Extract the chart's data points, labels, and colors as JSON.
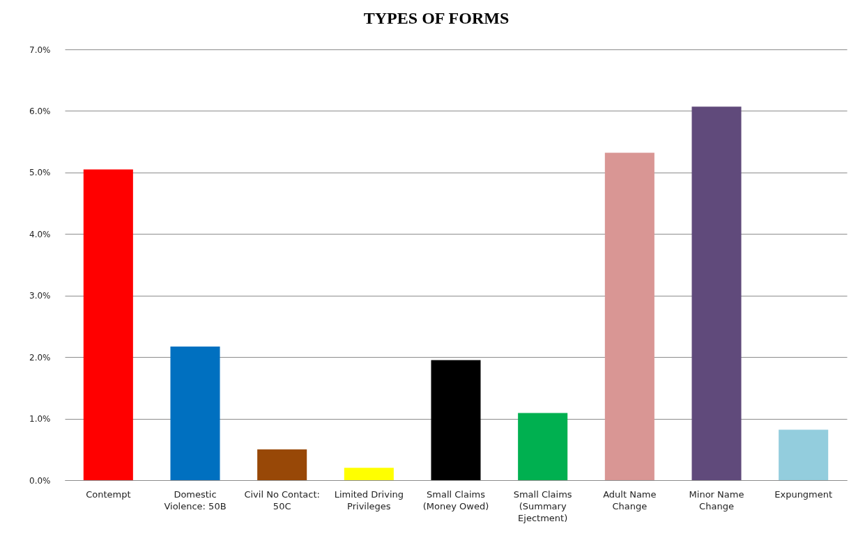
{
  "chart_data": {
    "type": "bar",
    "title": "TYPES OF FORMS",
    "categories": [
      "Contempt",
      "Domestic Violence: 50B",
      "Civil No Contact: 50C",
      "Limited Driving Privileges",
      "Small Claims (Money Owed)",
      "Small Claims (Summary Ejectment)",
      "Adult Name Change",
      "Minor Name Change",
      "Expungment"
    ],
    "values": [
      5.05,
      2.17,
      0.5,
      0.2,
      1.95,
      1.09,
      5.32,
      6.07,
      0.82
    ],
    "colors": [
      "#ff0000",
      "#0070c0",
      "#984807",
      "#ffff00",
      "#000000",
      "#00b050",
      "#d99694",
      "#604a7b",
      "#93cddd"
    ],
    "ylim": [
      0,
      7
    ],
    "yticks": [
      {
        "value": 0,
        "label": "0.0%"
      },
      {
        "value": 1,
        "label": "1.0%"
      },
      {
        "value": 2,
        "label": "2.0%"
      },
      {
        "value": 3,
        "label": "3.0%"
      },
      {
        "value": 4,
        "label": "4.0%"
      },
      {
        "value": 5,
        "label": "5.0%"
      },
      {
        "value": 6,
        "label": "6.0%"
      },
      {
        "value": 7,
        "label": "7.0%"
      }
    ],
    "grid": "y"
  }
}
